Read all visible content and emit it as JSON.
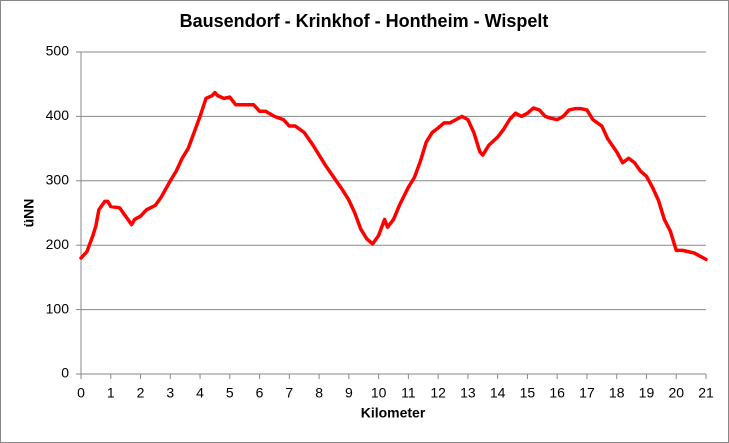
{
  "chart_data": {
    "type": "line",
    "title": "Bausendorf - Krinkhof - Hontheim - Wispelt",
    "xlabel": "Kilometer",
    "ylabel": "üNN",
    "color": "#ff0000",
    "grid": true,
    "x": [
      0,
      0.2,
      0.4,
      0.5,
      0.6,
      0.8,
      0.9,
      1.0,
      1.3,
      1.5,
      1.7,
      1.8,
      2.0,
      2.2,
      2.5,
      2.7,
      3.0,
      3.2,
      3.4,
      3.6,
      3.8,
      4.0,
      4.2,
      4.4,
      4.5,
      4.6,
      4.8,
      5.0,
      5.2,
      5.4,
      5.6,
      5.8,
      6.0,
      6.2,
      6.5,
      6.8,
      7.0,
      7.2,
      7.5,
      7.8,
      8.0,
      8.2,
      8.5,
      8.8,
      9.0,
      9.2,
      9.4,
      9.6,
      9.8,
      10.0,
      10.2,
      10.3,
      10.5,
      10.7,
      11.0,
      11.2,
      11.4,
      11.6,
      11.8,
      12.0,
      12.2,
      12.4,
      12.6,
      12.8,
      13.0,
      13.2,
      13.4,
      13.5,
      13.7,
      14.0,
      14.2,
      14.4,
      14.6,
      14.8,
      15.0,
      15.2,
      15.4,
      15.6,
      15.8,
      16.0,
      16.2,
      16.4,
      16.6,
      16.8,
      17.0,
      17.2,
      17.5,
      17.7,
      18.0,
      18.2,
      18.4,
      18.6,
      18.8,
      19.0,
      19.2,
      19.4,
      19.6,
      19.8,
      20.0,
      20.2,
      20.4,
      20.6,
      20.8,
      21.0
    ],
    "values": [
      180,
      190,
      215,
      230,
      255,
      268,
      268,
      260,
      258,
      245,
      232,
      240,
      245,
      255,
      262,
      275,
      300,
      315,
      335,
      350,
      375,
      400,
      428,
      432,
      437,
      432,
      428,
      430,
      418,
      418,
      418,
      418,
      408,
      408,
      400,
      395,
      385,
      385,
      375,
      355,
      340,
      325,
      305,
      285,
      270,
      250,
      225,
      210,
      202,
      215,
      240,
      228,
      240,
      262,
      290,
      305,
      330,
      360,
      375,
      382,
      390,
      390,
      395,
      400,
      395,
      375,
      345,
      340,
      355,
      368,
      380,
      395,
      405,
      400,
      405,
      413,
      410,
      400,
      397,
      395,
      400,
      410,
      412,
      412,
      410,
      395,
      385,
      365,
      345,
      328,
      335,
      328,
      315,
      307,
      290,
      270,
      240,
      222,
      192,
      192,
      190,
      188,
      183,
      178
    ],
    "xlim": [
      0,
      21
    ],
    "xticks": [
      0,
      1,
      2,
      3,
      4,
      5,
      6,
      7,
      8,
      9,
      10,
      11,
      12,
      13,
      14,
      15,
      16,
      17,
      18,
      19,
      20,
      21
    ],
    "ylim": [
      0,
      500
    ],
    "yticks": [
      0,
      100,
      200,
      300,
      400,
      500
    ]
  }
}
